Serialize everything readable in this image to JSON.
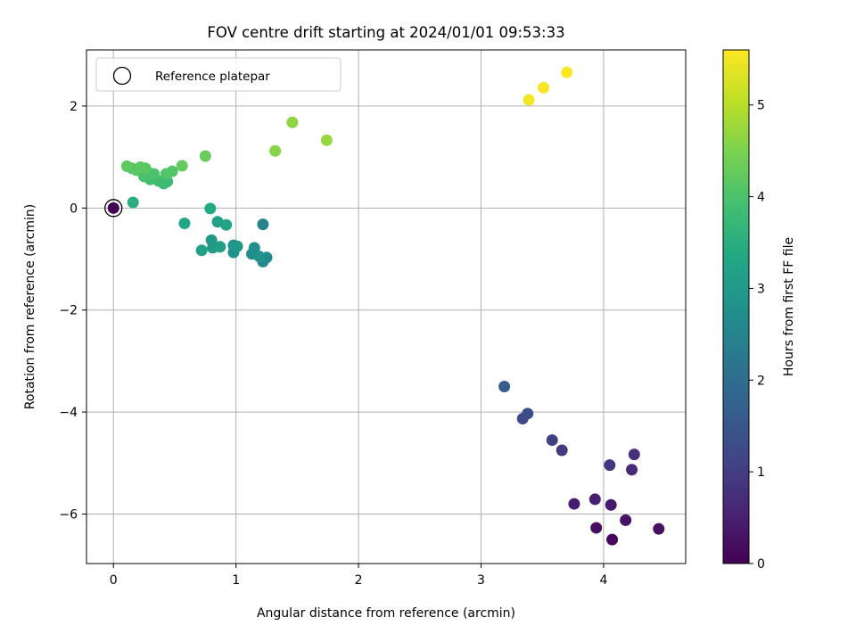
{
  "chart_data": {
    "type": "scatter",
    "title": "FOV centre drift starting at 2024/01/01 09:53:33",
    "xlabel": "Angular distance from reference (arcmin)",
    "ylabel": "Rotation from reference (arcmin)",
    "xlim": [
      -0.22,
      4.67
    ],
    "ylim": [
      -6.97,
      3.1
    ],
    "xticks": [
      0,
      1,
      2,
      3,
      4
    ],
    "xtick_labels": [
      "0",
      "1",
      "2",
      "3",
      "4"
    ],
    "yticks": [
      -6,
      -4,
      -2,
      0,
      2
    ],
    "ytick_labels": [
      "−6",
      "−4",
      "−2",
      "0",
      "2"
    ],
    "grid": true,
    "colormap": "viridis",
    "colorbar": {
      "label": "Hours from first FF file",
      "range": [
        0,
        5.6
      ],
      "ticks": [
        0,
        1,
        2,
        3,
        4,
        5
      ],
      "tick_labels": [
        "0",
        "1",
        "2",
        "3",
        "4",
        "5"
      ]
    },
    "legend": {
      "position": "upper-left",
      "entries": [
        {
          "label": "Reference platepar",
          "marker": "open-circle"
        }
      ]
    },
    "reference_point": {
      "x": 0,
      "y": 0
    },
    "points": [
      {
        "x": 0.0,
        "y": 0.0,
        "h": 0.0
      },
      {
        "x": 4.07,
        "y": -6.5,
        "h": 0.1
      },
      {
        "x": 3.94,
        "y": -6.27,
        "h": 0.2
      },
      {
        "x": 4.45,
        "y": -6.29,
        "h": 0.25
      },
      {
        "x": 4.18,
        "y": -6.12,
        "h": 0.3
      },
      {
        "x": 4.06,
        "y": -5.82,
        "h": 0.4
      },
      {
        "x": 3.76,
        "y": -5.8,
        "h": 0.45
      },
      {
        "x": 3.93,
        "y": -5.71,
        "h": 0.5
      },
      {
        "x": 4.23,
        "y": -5.13,
        "h": 0.65
      },
      {
        "x": 4.25,
        "y": -4.83,
        "h": 0.75
      },
      {
        "x": 4.05,
        "y": -5.04,
        "h": 0.85
      },
      {
        "x": 3.66,
        "y": -4.75,
        "h": 0.95
      },
      {
        "x": 3.58,
        "y": -4.55,
        "h": 1.05
      },
      {
        "x": 3.34,
        "y": -4.13,
        "h": 1.2
      },
      {
        "x": 3.38,
        "y": -4.03,
        "h": 1.3
      },
      {
        "x": 3.19,
        "y": -3.5,
        "h": 1.6
      },
      {
        "x": 1.22,
        "y": -0.32,
        "h": 2.5
      },
      {
        "x": 1.22,
        "y": -1.05,
        "h": 2.6
      },
      {
        "x": 1.25,
        "y": -0.97,
        "h": 2.65
      },
      {
        "x": 1.13,
        "y": -0.9,
        "h": 2.7
      },
      {
        "x": 1.15,
        "y": -0.78,
        "h": 2.75
      },
      {
        "x": 0.98,
        "y": -0.87,
        "h": 2.8
      },
      {
        "x": 1.19,
        "y": -0.95,
        "h": 2.85
      },
      {
        "x": 0.98,
        "y": -0.73,
        "h": 2.9
      },
      {
        "x": 1.01,
        "y": -0.75,
        "h": 2.95
      },
      {
        "x": 0.8,
        "y": -0.63,
        "h": 3.0
      },
      {
        "x": 0.81,
        "y": -0.78,
        "h": 3.05
      },
      {
        "x": 0.87,
        "y": -0.76,
        "h": 3.1
      },
      {
        "x": 0.72,
        "y": -0.83,
        "h": 3.15
      },
      {
        "x": 0.85,
        "y": -0.27,
        "h": 3.2
      },
      {
        "x": 0.92,
        "y": -0.33,
        "h": 3.25
      },
      {
        "x": 0.58,
        "y": -0.3,
        "h": 3.3
      },
      {
        "x": 0.79,
        "y": -0.01,
        "h": 3.4
      },
      {
        "x": 0.16,
        "y": 0.11,
        "h": 3.5
      },
      {
        "x": 0.41,
        "y": 0.48,
        "h": 3.75
      },
      {
        "x": 0.44,
        "y": 0.52,
        "h": 3.8
      },
      {
        "x": 0.37,
        "y": 0.53,
        "h": 3.85
      },
      {
        "x": 0.3,
        "y": 0.56,
        "h": 3.9
      },
      {
        "x": 0.25,
        "y": 0.62,
        "h": 3.95
      },
      {
        "x": 0.33,
        "y": 0.67,
        "h": 4.0
      },
      {
        "x": 0.28,
        "y": 0.7,
        "h": 4.02
      },
      {
        "x": 0.43,
        "y": 0.67,
        "h": 4.05
      },
      {
        "x": 0.48,
        "y": 0.72,
        "h": 4.08
      },
      {
        "x": 0.19,
        "y": 0.74,
        "h": 4.1
      },
      {
        "x": 0.15,
        "y": 0.78,
        "h": 4.12
      },
      {
        "x": 0.26,
        "y": 0.78,
        "h": 4.15
      },
      {
        "x": 0.22,
        "y": 0.8,
        "h": 4.18
      },
      {
        "x": 0.11,
        "y": 0.82,
        "h": 4.2
      },
      {
        "x": 0.56,
        "y": 0.83,
        "h": 4.25
      },
      {
        "x": 0.75,
        "y": 1.02,
        "h": 4.3
      },
      {
        "x": 1.32,
        "y": 1.12,
        "h": 4.6
      },
      {
        "x": 1.46,
        "y": 1.68,
        "h": 4.65
      },
      {
        "x": 1.74,
        "y": 1.33,
        "h": 4.7
      },
      {
        "x": 3.39,
        "y": 2.12,
        "h": 5.5
      },
      {
        "x": 3.51,
        "y": 2.36,
        "h": 5.55
      },
      {
        "x": 3.7,
        "y": 2.66,
        "h": 5.6
      }
    ]
  }
}
